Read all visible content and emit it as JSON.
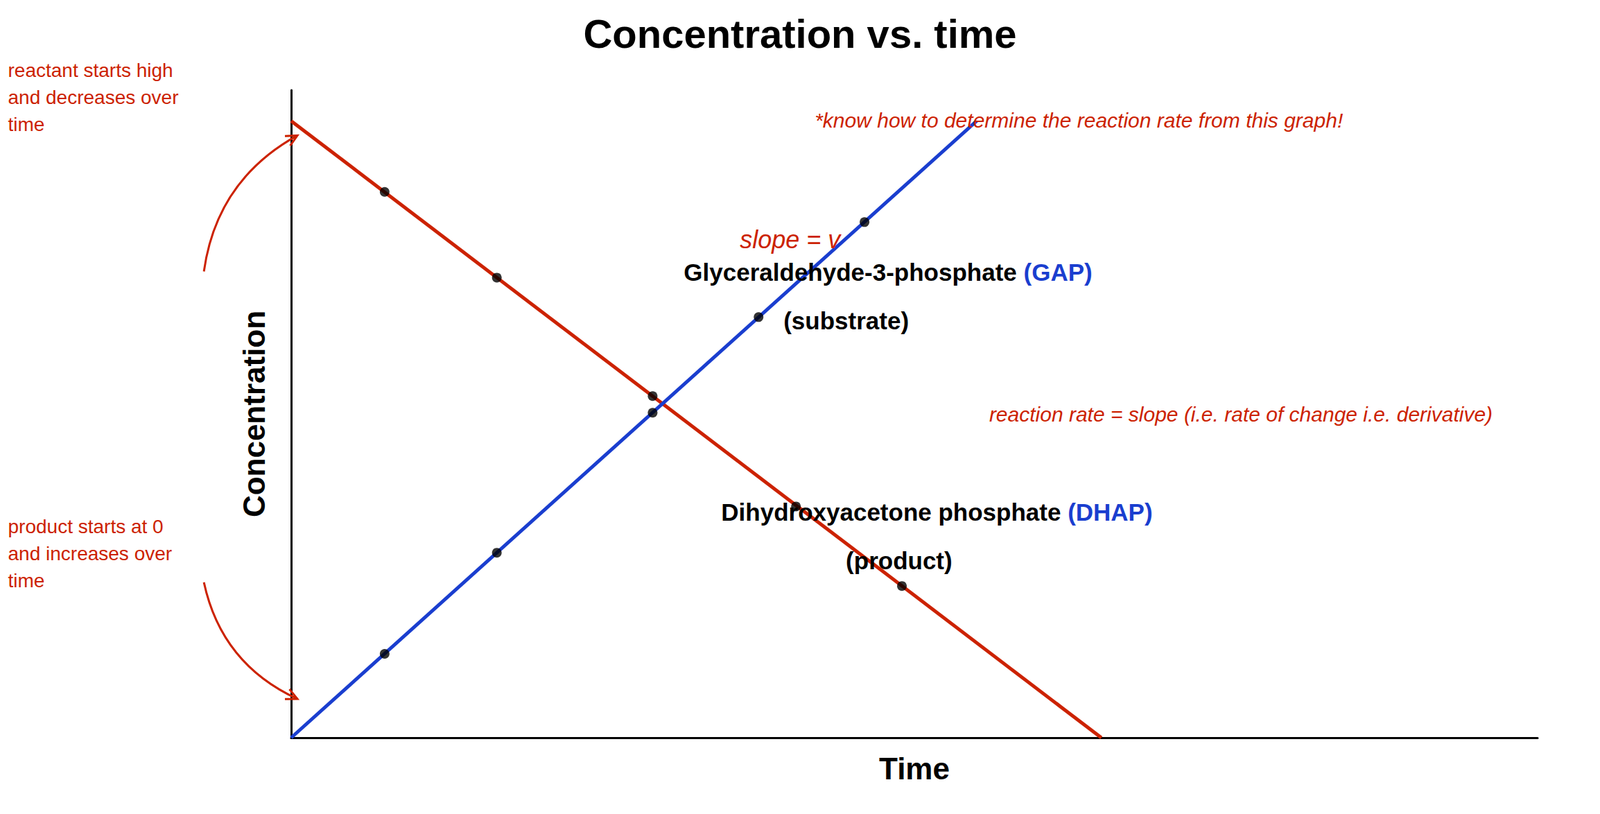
{
  "chart_data": {
    "type": "line",
    "title": "Concentration vs. time",
    "xlabel": "Time",
    "ylabel": "Concentration",
    "xlim": [
      0,
      1.0
    ],
    "ylim": [
      0,
      1.05
    ],
    "xticks": [],
    "yticks": [],
    "tick_labels": false,
    "grid": false,
    "series": [
      {
        "type": "line",
        "color": "#cc2200",
        "line_style": "solid",
        "x": [
          0.0,
          0.65
        ],
        "values": [
          1.0,
          0.0
        ]
      },
      {
        "type": "line",
        "color": "#1a3ecf",
        "line_style": "solid",
        "x": [
          0.0,
          0.55
        ],
        "values": [
          0.0,
          1.0
        ]
      },
      {
        "type": "scatter",
        "color": "#000000",
        "marker": "circle",
        "x": [
          0.075,
          0.165,
          0.29,
          0.405,
          0.49
        ],
        "values": [
          0.885,
          0.746,
          0.554,
          0.375,
          0.246
        ]
      },
      {
        "type": "scatter",
        "color": "#000000",
        "marker": "circle",
        "x": [
          0.075,
          0.165,
          0.29,
          0.375,
          0.46
        ],
        "values": [
          0.136,
          0.3,
          0.527,
          0.682,
          0.836
        ]
      }
    ],
    "annotations": [
      {
        "text": "slope = v",
        "color": "#cc2200"
      },
      {
        "text": "Glyceraldehyde-3-phosphate ",
        "color": "#000000"
      },
      {
        "text": "(GAP)",
        "color": "#1a3ecf"
      },
      {
        "text": "(substrate)",
        "color": "#000000"
      },
      {
        "text": "Dihydroxyacetone phosphate ",
        "color": "#000000"
      },
      {
        "text": "(DHAP)",
        "color": "#1a3ecf"
      },
      {
        "text": "(product)",
        "color": "#000000"
      },
      {
        "text": "*know how to determine the reaction rate from this graph!",
        "color": "#cc2200"
      },
      {
        "text": "reaction rate = slope (i.e. rate of change i.e. derivative)",
        "color": "#cc2200"
      },
      {
        "text": "reactant starts high\nand decreases over\ntime",
        "color": "#cc2200"
      },
      {
        "text": "product starts at 0\nand increases over\ntime",
        "color": "#cc2200"
      }
    ]
  }
}
